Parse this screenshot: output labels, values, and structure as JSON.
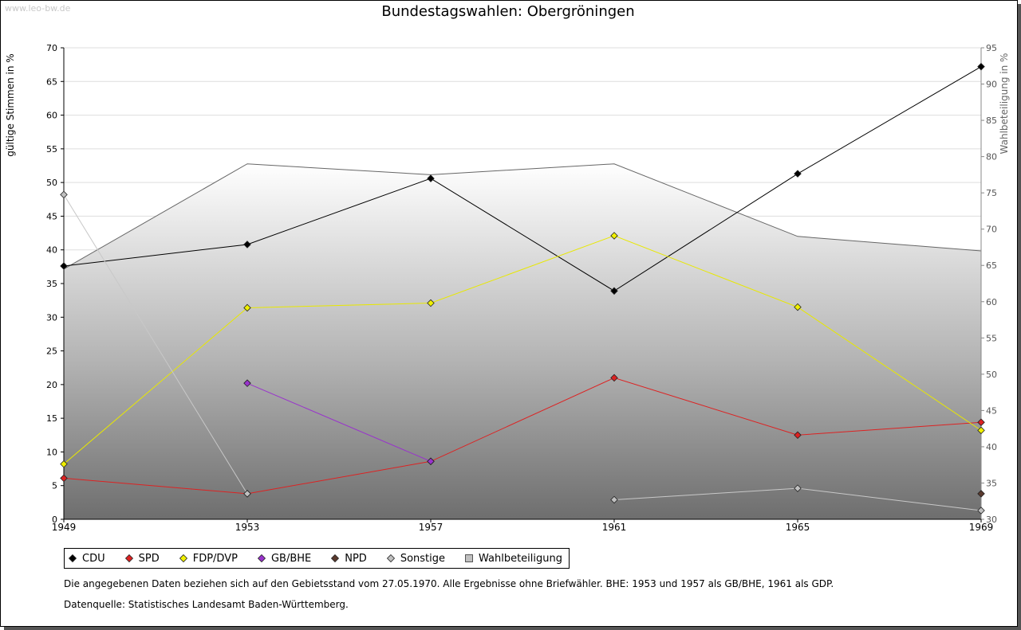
{
  "watermark": "www.leo-bw.de",
  "chart_data": {
    "type": "line",
    "title": "Bundestagswahlen: Obergröningen",
    "ylabel": "gültige Stimmen in %",
    "y2label": "Wahlbeteiligung in %",
    "ylim": [
      0,
      70
    ],
    "y2lim": [
      30,
      95
    ],
    "yticks": [
      0,
      5,
      10,
      15,
      20,
      25,
      30,
      35,
      40,
      45,
      50,
      55,
      60,
      65,
      70
    ],
    "y2ticks": [
      30,
      35,
      40,
      45,
      50,
      55,
      60,
      65,
      70,
      75,
      80,
      85,
      90,
      95
    ],
    "x": [
      1949,
      1953,
      1957,
      1961,
      1965,
      1969
    ],
    "grid": true,
    "legend_position": "bottom",
    "area": {
      "name": "Wahlbeteiligung",
      "axis": "right",
      "values": [
        64.5,
        79.0,
        77.5,
        79.0,
        69.0,
        67.0
      ],
      "color": "#666666"
    },
    "series": [
      {
        "name": "CDU",
        "color": "#000000",
        "line": "#000000",
        "values": [
          37.6,
          40.8,
          50.6,
          33.9,
          51.3,
          67.2
        ]
      },
      {
        "name": "SPD",
        "color": "#dd2222",
        "line": "#dd2222",
        "values": [
          6.1,
          3.8,
          8.6,
          21.0,
          12.5,
          14.4
        ]
      },
      {
        "name": "FDP/DVP",
        "color": "#f0f000",
        "line": "#e8e800",
        "values": [
          8.2,
          31.4,
          32.1,
          42.1,
          31.5,
          13.2
        ]
      },
      {
        "name": "GB/BHE",
        "color": "#9933cc",
        "line": "#9933cc",
        "values": [
          null,
          20.2,
          8.6,
          null,
          null,
          null
        ]
      },
      {
        "name": "NPD",
        "color": "#5a3a2e",
        "line": "#5a3a2e",
        "values": [
          null,
          null,
          null,
          null,
          null,
          3.8
        ]
      },
      {
        "name": "Sonstige",
        "color": "#c0c0c0",
        "line": "#c8c8c8",
        "values": [
          48.2,
          3.8,
          null,
          2.9,
          4.6,
          1.3
        ]
      }
    ]
  },
  "notes": {
    "line1": "Die angegebenen Daten beziehen sich auf den Gebietsstand vom 27.05.1970. Alle Ergebnisse ohne Briefwähler. BHE: 1953 und 1957 als GB/BHE, 1961 als GDP.",
    "line2": "Datenquelle: Statistisches Landesamt Baden-Württemberg."
  }
}
